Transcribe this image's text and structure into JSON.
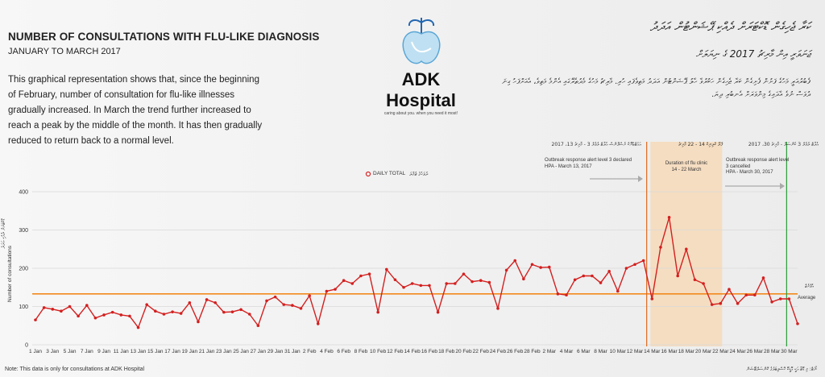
{
  "header": {
    "title": "NUMBER OF CONSULTATIONS WITH FLU-LIKE DIAGNOSIS",
    "subtitle": "JANUARY TO MARCH 2017",
    "description": "This graphical representation shows that, since the beginning of February, number of consultation for flu-like illnesses gradually increased. In March the trend further increased to reach a peak by the middle of the month. It has then gradually reduced to return back to a normal level."
  },
  "logo": {
    "name": "ADK Hospital",
    "tagline": "caring about you. when you need it most!"
  },
  "dhivehi": {
    "title": "ކަރާ ޖެހިގެން ޑޮކްޓަރަށް ދެއްކި ޕޭޝަންޓުން އަދަދު",
    "subtitle": "ޖަނަވަރީ އިން މާރިޗު 2017 ގެ ނިޔަލަށް",
    "paragraph": "ފެބުރުއަރީ މަހުގެ ފަށުން ފެށިގެން ކަރާ ޖެހިގެން ހަކުރުވާ ހާލު ޕޭޝަންޓުން އަދަދު މަތިވެފައި ހުރި. މާރިޗު މަހުގެ މެދުތެރޭގައި އެންމެ މަތިވެ، އެއަށްފަހު ގިނަ ދުވަސް ނުވެ އާދައިގެ މިންވަރަށް އެނބުރި ދިޔަ.",
    "ylabel": "ޑޮކްޓަރަށް ދެއްކި އަދަދު",
    "legend": "ދުވަހުގެ ޖުމްލަ",
    "average": "އެވްރެޖް",
    "footnote": "ނޯޓް: މި ޑޭޓާ އަކީ އޭޑީކޭ ހޮސްޕިޓަލުގެ ކޮންސަލްޓޭޝަން"
  },
  "annotations": {
    "level3_declared": "Outbreak response alert level 3 declared\nHPA - March 13, 2017",
    "level3_declared_dv": "އައުޓްބްރޭކް ރެސްޕޮންސް އެލާޓް ލެވެލް 3 - މާރިޗު 13، 2017",
    "flu_clinic": "Duration of flu clinic\n14 - 22 March",
    "flu_clinic_dv": "ފްލޫ ކްލިނިކް 14 - 22 މާރިޗު",
    "level3_cancelled": "Outbreak response alert level\n3 cancelled\nHPA - March 30, 2017",
    "level3_cancelled_dv": "އެލާޓް ލެވެލް 3 ކެންސަލް - މާރިޗު 30، 2017"
  },
  "legend_label": "DAILY TOTAL",
  "footnote": "Note: This data is only for consultations at ADK Hospital",
  "colors": {
    "line": "#d41f1f",
    "average": "#f28a1e",
    "outbreak_line": "#e0691a",
    "cancel_line": "#2a9e3a",
    "flu_clinic_band": "#f6d9b8"
  },
  "chart_data": {
    "type": "line",
    "xlabel": "",
    "ylabel": "Number of consultations",
    "ylim": [
      0,
      400
    ],
    "yticks": [
      0,
      100,
      200,
      300,
      400
    ],
    "grid": true,
    "legend_position": "top-center",
    "average_label": "Average",
    "average": 133,
    "x_tick_labels": [
      "1 Jan",
      "3 Jan",
      "5 Jan",
      "7 Jan",
      "9 Jan",
      "11 Jan",
      "13 Jan",
      "15 Jan",
      "17 Jan",
      "19 Jan",
      "21 Jan",
      "23 Jan",
      "25 Jan",
      "27 Jan",
      "29 Jan",
      "31 Jan",
      "2 Feb",
      "4 Feb",
      "6 Feb",
      "8 Feb",
      "10 Feb",
      "12 Feb",
      "14 Feb",
      "16 Feb",
      "18 Feb",
      "20 Feb",
      "22 Feb",
      "24 Feb",
      "26 Feb",
      "28 Feb",
      "2 Mar",
      "4 Mar",
      "6 Mar",
      "8 Mar",
      "10 Mar",
      "12 Mar",
      "14 Mar",
      "16 Mar",
      "18 Mar",
      "20 Mar",
      "22 Mar",
      "24 Mar",
      "26 Mar",
      "28 Mar",
      "30 Mar"
    ],
    "series": [
      {
        "name": "DAILY TOTAL",
        "values": [
          65,
          97,
          93,
          88,
          100,
          75,
          103,
          70,
          78,
          85,
          78,
          75,
          45,
          105,
          88,
          80,
          86,
          82,
          110,
          60,
          118,
          110,
          85,
          86,
          92,
          80,
          50,
          115,
          125,
          105,
          103,
          95,
          128,
          55,
          140,
          145,
          168,
          160,
          180,
          185,
          85,
          197,
          170,
          150,
          160,
          155,
          155,
          85,
          160,
          160,
          185,
          165,
          168,
          163,
          95,
          195,
          220,
          172,
          210,
          202,
          203,
          133,
          130,
          170,
          180,
          180,
          162,
          192,
          140,
          200,
          210,
          220,
          120,
          255,
          333,
          180,
          250,
          170,
          160,
          105,
          108,
          145,
          108,
          130,
          130,
          175,
          112,
          120,
          120,
          55
        ]
      }
    ],
    "x_start": "2017-01-01",
    "x_end": "2017-03-31",
    "markers": [
      {
        "label": "Outbreak response alert level 3 declared",
        "date": "2017-03-13"
      },
      {
        "label": "Duration of flu clinic",
        "from": "2017-03-14",
        "to": "2017-03-22"
      },
      {
        "label": "Outbreak response alert level 3 cancelled",
        "date": "2017-03-30"
      }
    ]
  }
}
